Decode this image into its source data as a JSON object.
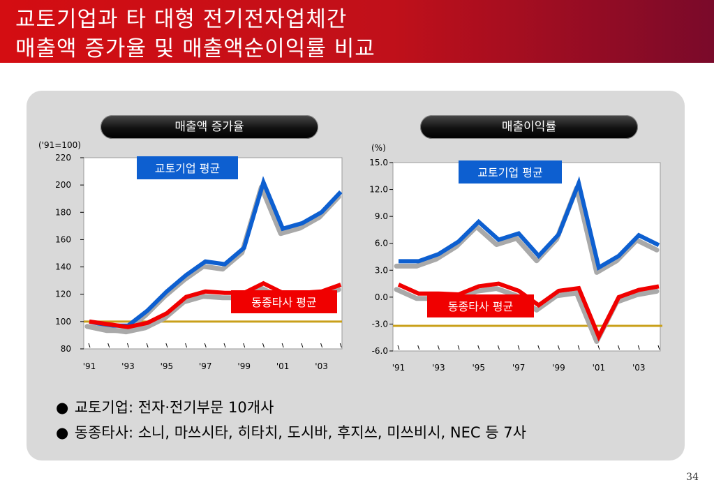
{
  "title": {
    "line1": "교토기업과 타 대형 전기전자업체간",
    "line2": "매출액 증가율 및 매출액순이익률 비교"
  },
  "chart_data": [
    {
      "type": "line",
      "title": "매출액 증가율",
      "ylabel": "('91=100)",
      "ylim": [
        80,
        220
      ],
      "yticks": [
        "220",
        "200",
        "180",
        "160",
        "140",
        "120",
        "100",
        "80"
      ],
      "x": [
        1991,
        1992,
        1993,
        1994,
        1995,
        1996,
        1997,
        1998,
        1999,
        2000,
        2001,
        2002,
        2003,
        2004
      ],
      "xtick_labels": [
        "'91",
        "'93",
        "'95",
        "'97",
        "'99",
        "'01",
        "'03"
      ],
      "reference_value": 100,
      "series": [
        {
          "name": "교토기업 평균",
          "color": "#0d5fd0",
          "values": [
            100,
            97,
            97,
            108,
            122,
            134,
            144,
            142,
            154,
            202,
            168,
            172,
            180,
            195
          ]
        },
        {
          "name": "동종타사 평균",
          "color": "#f00000",
          "values": [
            100,
            98,
            96,
            99,
            106,
            118,
            122,
            121,
            121,
            128,
            121,
            121,
            122,
            127
          ]
        }
      ]
    },
    {
      "type": "line",
      "title": "매출이익률",
      "ylabel": "(%)",
      "ylim": [
        -6,
        15
      ],
      "yticks": [
        "15.0",
        "12.0",
        "9.0",
        "6.0",
        "3.0",
        "0.0",
        "-3.0",
        "-6.0"
      ],
      "x": [
        1991,
        1992,
        1993,
        1994,
        1995,
        1996,
        1997,
        1998,
        1999,
        2000,
        2001,
        2002,
        2003,
        2004
      ],
      "xtick_labels": [
        "'91",
        "'93",
        "'95",
        "'97",
        "'99",
        "'01",
        "'03"
      ],
      "reference_value": -3.2,
      "series": [
        {
          "name": "교토기업 평균",
          "color": "#0d5fd0",
          "values": [
            4.0,
            4.0,
            4.8,
            6.2,
            8.4,
            6.4,
            7.1,
            4.6,
            7.0,
            12.7,
            3.3,
            4.6,
            6.9,
            5.8
          ]
        },
        {
          "name": "동종타사 평균",
          "color": "#f00000",
          "values": [
            1.4,
            0.4,
            0.4,
            0.3,
            1.2,
            1.5,
            0.7,
            -0.9,
            0.7,
            1.0,
            -4.4,
            0.0,
            0.8,
            1.2
          ]
        }
      ]
    }
  ],
  "bullets": [
    "교토기업: 전자·전기부문 10개사",
    "동종타사: 소니, 마쓰시타, 히타치, 도시바, 후지쓰, 미쓰비시, NEC 등 7사"
  ],
  "bullet_glyph": "●",
  "page_number": "34",
  "colors": {
    "header_red": "#d40d12",
    "kyoto_blue": "#0d5fd0",
    "peer_red": "#f00000",
    "reference_gold": "#c9a01a"
  }
}
